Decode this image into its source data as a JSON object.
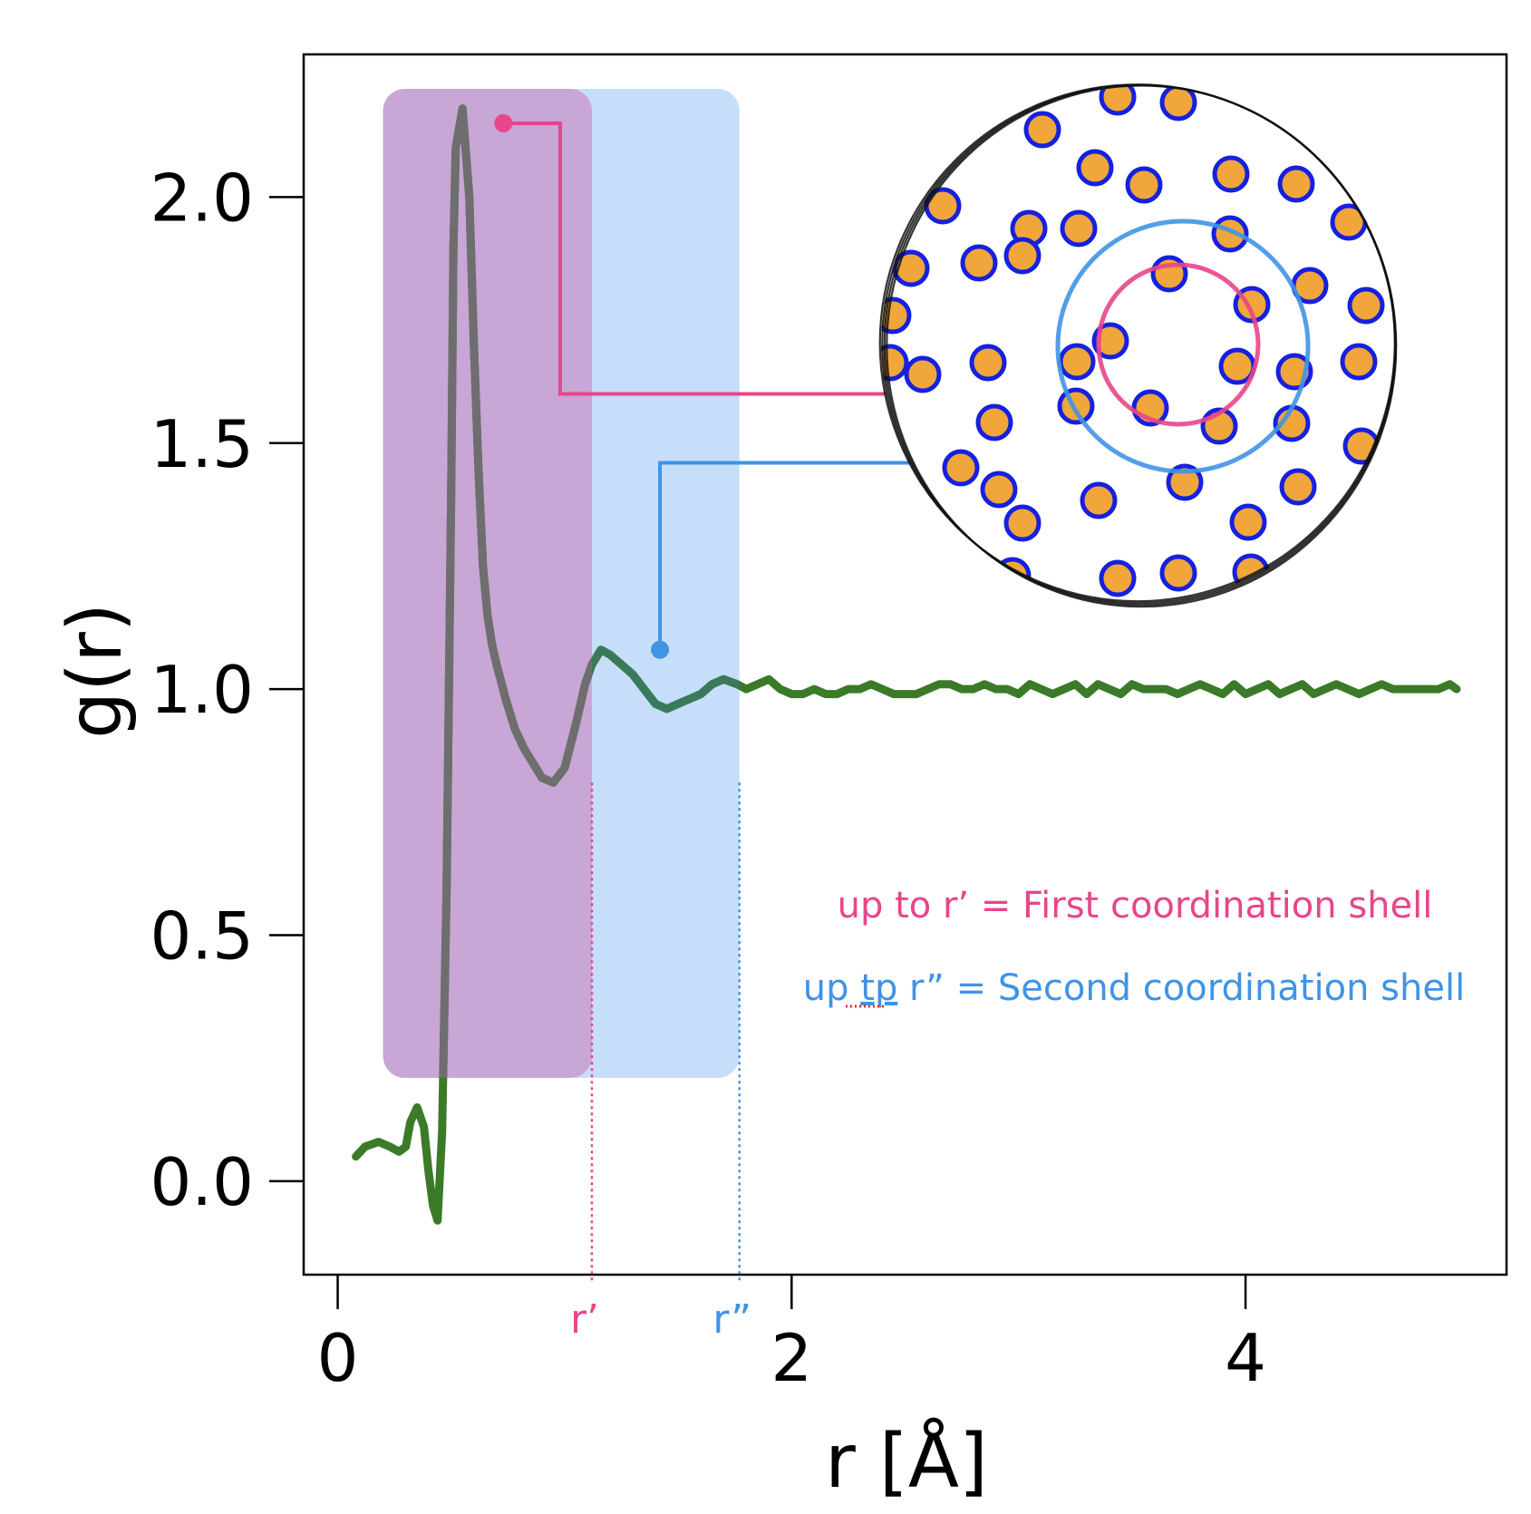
{
  "chart_data": {
    "type": "line",
    "xlabel": "r [Å]",
    "ylabel": "g(r)",
    "xlim": [
      -0.15,
      5.15
    ],
    "ylim": [
      -0.19,
      2.29
    ],
    "xticks": [
      0,
      2,
      4
    ],
    "yticks": [
      0.0,
      0.5,
      1.0,
      1.5,
      2.0
    ],
    "xtick_labels": [
      "0",
      "2",
      "4"
    ],
    "ytick_labels": [
      "0.0",
      "0.5",
      "1.0",
      "1.5",
      "2.0"
    ],
    "grid": false,
    "series": [
      {
        "color": "#3a7a28",
        "x": [
          0.08,
          0.12,
          0.18,
          0.23,
          0.27,
          0.3,
          0.32,
          0.35,
          0.38,
          0.4,
          0.42,
          0.44,
          0.46,
          0.48,
          0.5,
          0.51,
          0.52,
          0.55,
          0.58,
          0.6,
          0.62,
          0.64,
          0.66,
          0.68,
          0.7,
          0.74,
          0.78,
          0.82,
          0.86,
          0.9,
          0.95,
          1.0,
          1.05,
          1.09,
          1.12,
          1.16,
          1.2,
          1.25,
          1.3,
          1.35,
          1.4,
          1.45,
          1.5,
          1.55,
          1.6,
          1.65,
          1.7,
          1.76,
          1.8,
          1.85,
          1.9,
          1.95,
          2.0,
          2.05,
          2.1,
          2.15,
          2.2,
          2.25,
          2.3,
          2.35,
          2.4,
          2.45,
          2.5,
          2.55,
          2.6,
          2.65,
          2.7,
          2.75,
          2.8,
          2.85,
          2.9,
          2.95,
          3.0,
          3.05,
          3.1,
          3.15,
          3.2,
          3.25,
          3.3,
          3.35,
          3.4,
          3.45,
          3.5,
          3.55,
          3.6,
          3.65,
          3.7,
          3.75,
          3.8,
          3.85,
          3.9,
          3.95,
          4.0,
          4.05,
          4.1,
          4.15,
          4.2,
          4.25,
          4.3,
          4.35,
          4.4,
          4.45,
          4.5,
          4.55,
          4.6,
          4.65,
          4.7,
          4.75,
          4.8,
          4.85,
          4.9,
          4.93
        ],
        "y": [
          0.05,
          0.07,
          0.08,
          0.07,
          0.06,
          0.07,
          0.12,
          0.15,
          0.11,
          0.02,
          -0.05,
          -0.08,
          0.1,
          0.6,
          1.4,
          1.9,
          2.1,
          2.18,
          2.0,
          1.7,
          1.45,
          1.25,
          1.15,
          1.09,
          1.05,
          0.98,
          0.92,
          0.88,
          0.85,
          0.82,
          0.81,
          0.84,
          0.93,
          1.01,
          1.05,
          1.08,
          1.07,
          1.05,
          1.03,
          1.0,
          0.97,
          0.96,
          0.97,
          0.98,
          0.99,
          1.01,
          1.02,
          1.01,
          1.0,
          1.01,
          1.02,
          1.0,
          0.99,
          0.99,
          1.0,
          0.99,
          0.99,
          1.0,
          1.0,
          1.01,
          1.0,
          0.99,
          0.99,
          0.99,
          1.0,
          1.01,
          1.01,
          1.0,
          1.0,
          1.01,
          1.0,
          1.0,
          0.99,
          1.01,
          1.0,
          0.99,
          1.0,
          1.01,
          0.99,
          1.01,
          1.0,
          0.99,
          1.01,
          1.0,
          1.0,
          1.0,
          0.99,
          1.0,
          1.01,
          1.0,
          0.99,
          1.01,
          0.99,
          1.0,
          1.01,
          0.99,
          1.0,
          1.01,
          0.99,
          1.0,
          1.01,
          1.0,
          0.99,
          1.0,
          1.01,
          1.0,
          1.0,
          1.0,
          1.0,
          1.0,
          1.01,
          1.0
        ]
      }
    ],
    "shaded_regions": [
      {
        "label": "first shell",
        "x": [
          0.2,
          1.12
        ],
        "y": [
          0.21,
          2.22
        ],
        "color": "#c8a6d6"
      },
      {
        "label": "second shell",
        "x": [
          0.2,
          1.77
        ],
        "y": [
          0.21,
          2.22
        ],
        "color": "#c6defa"
      }
    ],
    "markers": [
      {
        "x": 0.73,
        "y": 2.15,
        "color": "#e8458a"
      },
      {
        "x": 1.42,
        "y": 1.08,
        "color": "#4093e5"
      }
    ],
    "cutoffs": [
      {
        "label": "r’",
        "x": 1.12,
        "color": "#e8458a"
      },
      {
        "label": "r”",
        "x": 1.77,
        "color": "#4093e5"
      }
    ],
    "annotations": {
      "first_shell_pre": "up to ",
      "first_shell_mid": "r’ = First coordination shell",
      "second_shell_pre": "up ",
      "second_shell_typo": "tp",
      "second_shell_mid": " r” = Second coordination shell"
    },
    "colors": {
      "first_shell": "#e8458a",
      "second_shell": "#4093e5",
      "atom_fill": "#f0a63a",
      "atom_stroke": "#1520e0",
      "curve_in_shell": "#6e6e6e"
    }
  }
}
